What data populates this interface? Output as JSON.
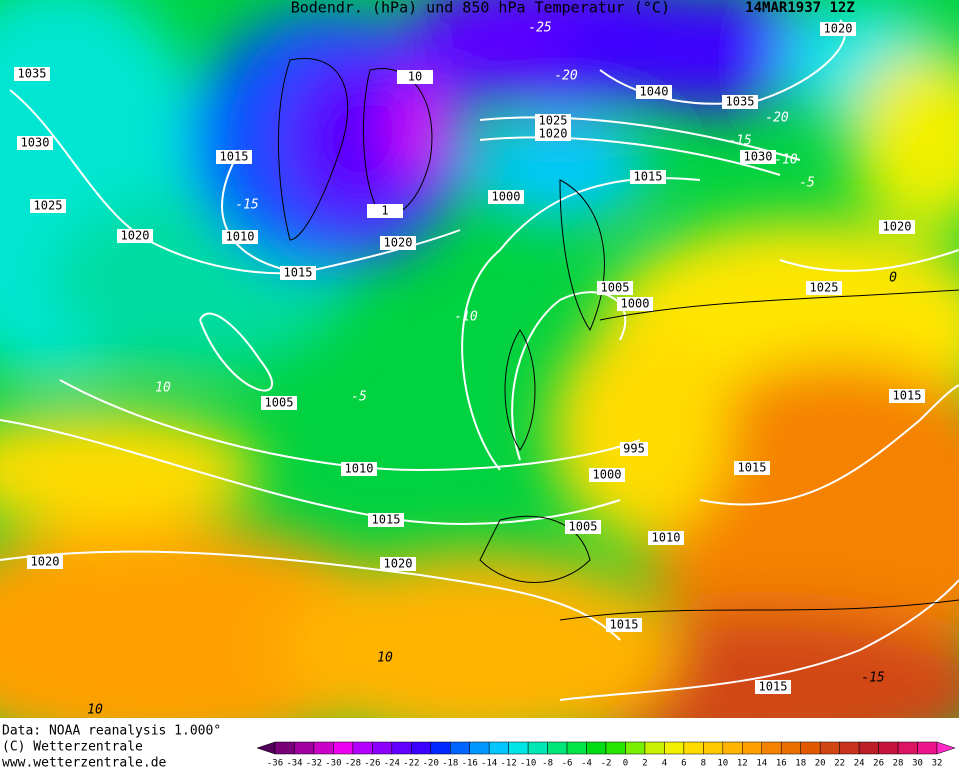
{
  "header": {
    "title": "Bodendr. (hPa) und 850 hPa Temperatur (°C)",
    "date": "14MAR1937 12Z"
  },
  "isobar_labels": [
    "1035",
    "1030",
    "1025",
    "1020",
    "1015",
    "1010",
    "1015",
    "1020",
    "1000",
    "1025",
    "1020",
    "1040",
    "1035",
    "1030",
    "1015",
    "1020",
    "1020",
    "1025",
    "1005",
    "1000",
    "1005",
    "1010",
    "1015",
    "1020",
    "1020",
    "995",
    "1000",
    "1005",
    "1010",
    "1015",
    "1015",
    "1015",
    "1015",
    "10",
    "1"
  ],
  "temperature_labels": [
    "-25",
    "-20",
    "-20",
    "-15",
    "-10",
    "-5",
    "-15",
    "-10",
    "-5",
    "10",
    "0",
    "10",
    "10",
    "-15"
  ],
  "footer": [
    "Data: NOAA reanalysis 1.000°",
    "(C) Wetterzentrale",
    "www.wetterzentrale.de"
  ],
  "legend": {
    "values": [
      -36,
      -34,
      -32,
      -30,
      -28,
      -26,
      -24,
      -22,
      -20,
      -18,
      -16,
      -14,
      -12,
      -10,
      -8,
      -6,
      -4,
      -2,
      0,
      2,
      4,
      6,
      8,
      10,
      12,
      14,
      16,
      18,
      20,
      22,
      24,
      26,
      28,
      30,
      32
    ],
    "colors": [
      "#50005a",
      "#780078",
      "#a000a0",
      "#c800c8",
      "#f000f0",
      "#b400ff",
      "#8c00ff",
      "#6400ff",
      "#3c00ff",
      "#0028ff",
      "#0064ff",
      "#0096ff",
      "#00c8ff",
      "#00e6e6",
      "#00e6b4",
      "#00e678",
      "#00e646",
      "#00dc14",
      "#28e600",
      "#78f000",
      "#c8f000",
      "#f0f000",
      "#ffdc00",
      "#ffc800",
      "#ffb400",
      "#ffa000",
      "#f58200",
      "#eb6e00",
      "#e15a00",
      "#d24614",
      "#c8321e",
      "#be1e28",
      "#c8143c",
      "#dc1464",
      "#f0148c",
      "#ff28c8"
    ]
  }
}
